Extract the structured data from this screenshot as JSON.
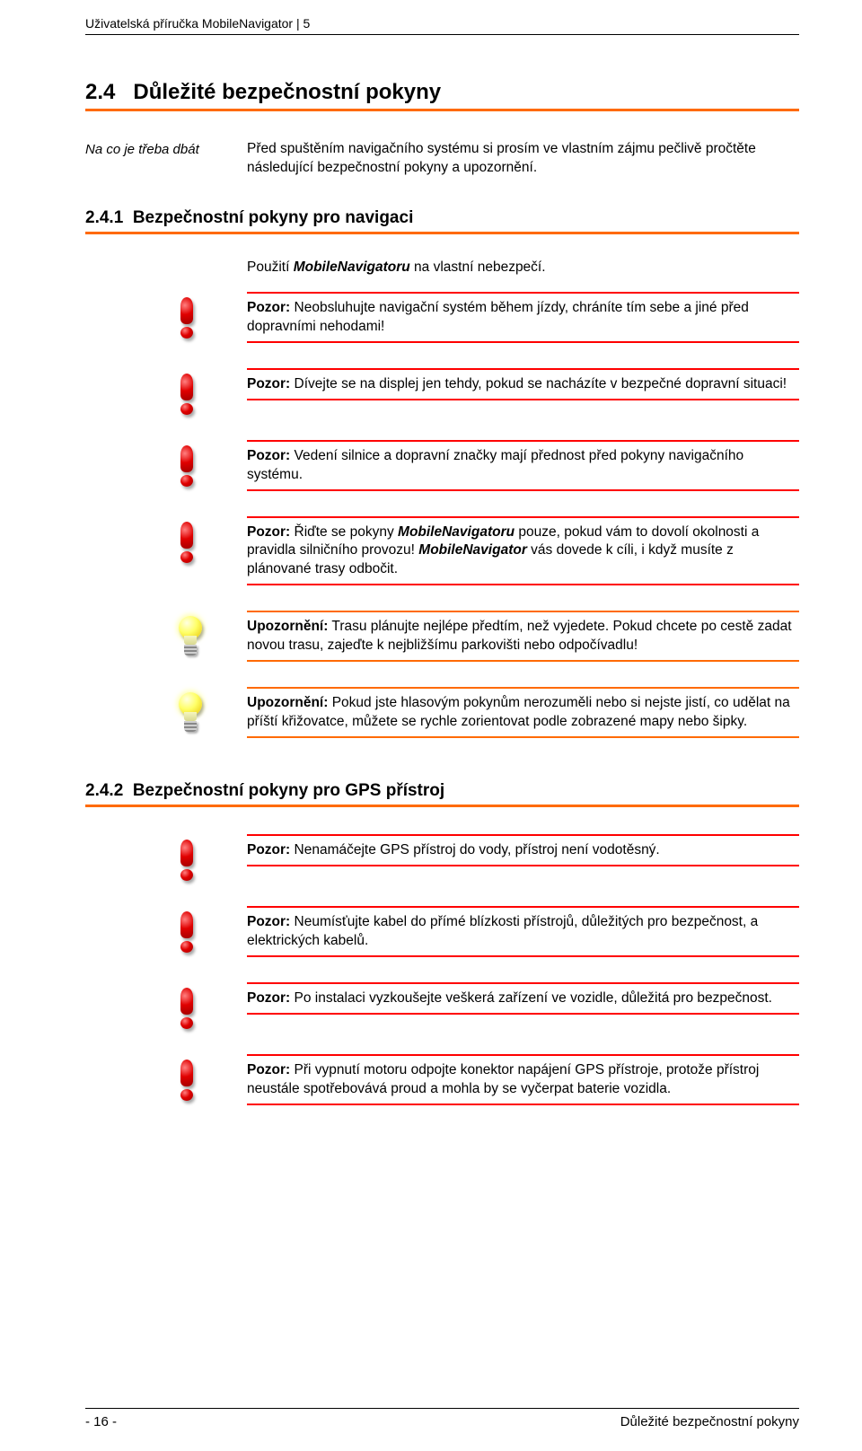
{
  "header": "Uživatelská příručka MobileNavigator | 5",
  "section": {
    "num": "2.4",
    "title": "Důležité bezpečnostní pokyny"
  },
  "intro": {
    "label": "Na co je třeba dbát",
    "text": "Před spuštěním navigačního systému si prosím ve vlastním zájmu pečlivě pročtěte následující bezpečnostní pokyny a upozornění."
  },
  "sub1": {
    "num": "2.4.1",
    "title": "Bezpečnostní pokyny pro navigaci",
    "lead_pre": "Použití ",
    "lead_em": "MobileNavigatoru",
    "lead_post": " na vlastní nebezpečí.",
    "items": [
      {
        "type": "warn",
        "strong": "Pozor:",
        "text": " Neobsluhujte navigační systém během jízdy, chráníte tím sebe a jiné před dopravními nehodami!"
      },
      {
        "type": "warn",
        "strong": "Pozor:",
        "text": " Dívejte se na displej jen tehdy, pokud se nacházíte v bezpečné dopravní situaci!"
      },
      {
        "type": "warn",
        "strong": "Pozor:",
        "text": " Vedení silnice a dopravní značky mají přednost před pokyny navigačního systému."
      },
      {
        "type": "warn",
        "strong": "Pozor:",
        "text_pre": " Řiďte se pokyny ",
        "em1": "MobileNavigatoru",
        "text_mid": " pouze, pokud vám to dovolí okolnosti a pravidla silničního provozu! ",
        "em2": "MobileNavigator",
        "text_post": " vás dovede k cíli, i když musíte z plánované trasy odbočit."
      },
      {
        "type": "tip",
        "strong": "Upozornění:",
        "text": " Trasu plánujte nejlépe předtím, než vyjedete. Pokud chcete po cestě zadat novou trasu, zajeďte k nejbližšímu parkovišti nebo odpočívadlu!"
      },
      {
        "type": "tip",
        "strong": "Upozornění:",
        "text": " Pokud jste hlasovým pokynům nerozuměli nebo si nejste jistí, co udělat na příští křižovatce, můžete se rychle zorientovat podle zobrazené mapy nebo šipky."
      }
    ]
  },
  "sub2": {
    "num": "2.4.2",
    "title": "Bezpečnostní pokyny pro GPS přístroj",
    "items": [
      {
        "type": "warn",
        "strong": "Pozor:",
        "text": " Nenamáčejte GPS přístroj do vody, přístroj není vodotěsný."
      },
      {
        "type": "warn",
        "strong": "Pozor:",
        "text": " Neumísťujte kabel do přímé blízkosti přístrojů, důležitých pro bezpečnost, a elektrických kabelů."
      },
      {
        "type": "warn",
        "strong": "Pozor:",
        "text": " Po instalaci vyzkoušejte veškerá zařízení ve vozidle, důležitá pro bezpečnost."
      },
      {
        "type": "warn",
        "strong": "Pozor:",
        "text": " Při vypnutí motoru odpojte konektor napájení GPS přístroje, protože přístroj neustále spotřebovává proud a mohla by se vyčerpat baterie vozidla."
      }
    ]
  },
  "footer": {
    "left": "- 16 -",
    "right": "Důležité bezpečnostní pokyny"
  }
}
